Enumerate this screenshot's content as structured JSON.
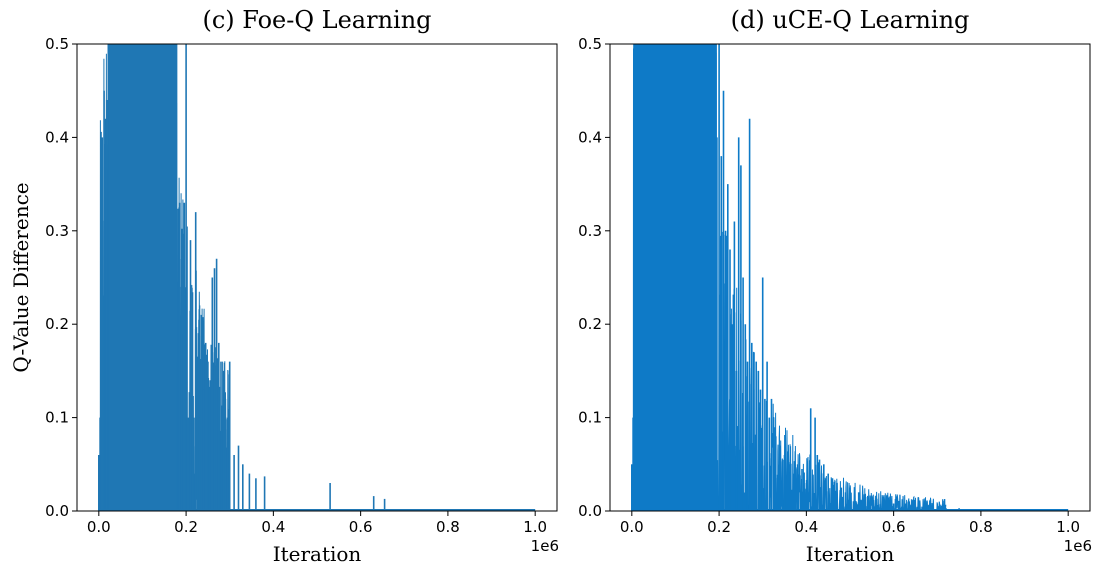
{
  "chart_data": [
    {
      "type": "line",
      "title": "(c) Foe-Q Learning",
      "xlabel": "Iteration",
      "ylabel": "Q-Value Difference",
      "x_offset_label": "1e6",
      "xlim": [
        -0.05,
        1.05
      ],
      "ylim": [
        0.0,
        0.5
      ],
      "xticks": [
        0.0,
        0.2,
        0.4,
        0.6,
        0.8,
        1.0
      ],
      "xtick_labels": [
        "0.0",
        "0.2",
        "0.4",
        "0.6",
        "0.8",
        "1.0"
      ],
      "yticks": [
        0.0,
        0.1,
        0.2,
        0.3,
        0.4,
        0.5
      ],
      "ytick_labels": [
        "0.0",
        "0.1",
        "0.2",
        "0.3",
        "0.4",
        "0.5"
      ],
      "grid": false,
      "color": "#1f77b4",
      "series": [
        {
          "x": [
            0.0,
            0.003,
            0.005,
            0.008,
            0.012,
            0.015,
            0.018,
            0.022,
            0.025,
            0.18,
            0.182,
            0.185,
            0.188,
            0.19,
            0.193,
            0.196,
            0.2,
            0.205,
            0.21,
            0.214,
            0.218,
            0.222,
            0.226,
            0.23,
            0.235,
            0.24,
            0.245,
            0.25,
            0.255,
            0.26,
            0.265,
            0.27,
            0.275,
            0.28,
            0.285,
            0.29,
            0.295,
            0.3,
            0.31,
            0.32,
            0.33,
            0.345,
            0.36,
            0.38,
            0.53,
            0.63,
            0.655,
            1.0
          ],
          "y": [
            0.06,
            0.1,
            0.1,
            0.4,
            0.45,
            0.42,
            0.44,
            0.5,
            0.5,
            0.16,
            0.2,
            0.33,
            0.18,
            0.19,
            0.19,
            0.33,
            0.5,
            0.1,
            0.29,
            0.15,
            0.1,
            0.32,
            0.13,
            0.1,
            0.21,
            0.13,
            0.18,
            0.16,
            0.14,
            0.25,
            0.26,
            0.27,
            0.18,
            0.16,
            0.15,
            0.12,
            0.1,
            0.16,
            0.06,
            0.07,
            0.05,
            0.04,
            0.035,
            0.037,
            0.03,
            0.016,
            0.013,
            0.0
          ]
        }
      ]
    },
    {
      "type": "line",
      "title": "(d) uCE-Q Learning",
      "xlabel": "Iteration",
      "ylabel": "",
      "x_offset_label": "1e6",
      "xlim": [
        -0.05,
        1.05
      ],
      "ylim": [
        0.0,
        0.5
      ],
      "xticks": [
        0.0,
        0.2,
        0.4,
        0.6,
        0.8,
        1.0
      ],
      "xtick_labels": [
        "0.0",
        "0.2",
        "0.4",
        "0.6",
        "0.8",
        "1.0"
      ],
      "yticks": [
        0.0,
        0.1,
        0.2,
        0.3,
        0.4,
        0.5
      ],
      "ytick_labels": [
        "0.0",
        "0.1",
        "0.2",
        "0.3",
        "0.4",
        "0.5"
      ],
      "grid": false,
      "color": "#0e7ac7",
      "series": [
        {
          "x": [
            0.0,
            0.003,
            0.005,
            0.195,
            0.2,
            0.205,
            0.21,
            0.215,
            0.22,
            0.225,
            0.23,
            0.235,
            0.24,
            0.245,
            0.25,
            0.255,
            0.26,
            0.265,
            0.27,
            0.275,
            0.28,
            0.285,
            0.29,
            0.295,
            0.3,
            0.305,
            0.31,
            0.315,
            0.32,
            0.325,
            0.33,
            0.34,
            0.35,
            0.36,
            0.37,
            0.38,
            0.39,
            0.4,
            0.41,
            0.42,
            0.425,
            0.43,
            0.44,
            0.45,
            0.46,
            0.47,
            0.48,
            0.49,
            0.5,
            0.52,
            0.54,
            0.56,
            0.58,
            0.6,
            0.62,
            0.64,
            0.66,
            0.68,
            0.7,
            0.72,
            0.75,
            0.8,
            0.85,
            0.9,
            0.95,
            1.0
          ],
          "y": [
            0.05,
            0.1,
            0.5,
            0.4,
            0.5,
            0.38,
            0.45,
            0.3,
            0.35,
            0.28,
            0.2,
            0.31,
            0.15,
            0.4,
            0.37,
            0.25,
            0.2,
            0.16,
            0.42,
            0.18,
            0.17,
            0.16,
            0.15,
            0.13,
            0.25,
            0.12,
            0.16,
            0.1,
            0.12,
            0.1,
            0.08,
            0.07,
            0.06,
            0.05,
            0.04,
            0.05,
            0.045,
            0.03,
            0.11,
            0.1,
            0.06,
            0.055,
            0.05,
            0.04,
            0.035,
            0.03,
            0.025,
            0.02,
            0.025,
            0.02,
            0.015,
            0.012,
            0.01,
            0.008,
            0.006,
            0.005,
            0.004,
            0.004,
            0.003,
            0.003,
            0.003,
            0.002,
            0.002,
            0.002,
            0.001,
            0.0
          ]
        }
      ]
    }
  ]
}
